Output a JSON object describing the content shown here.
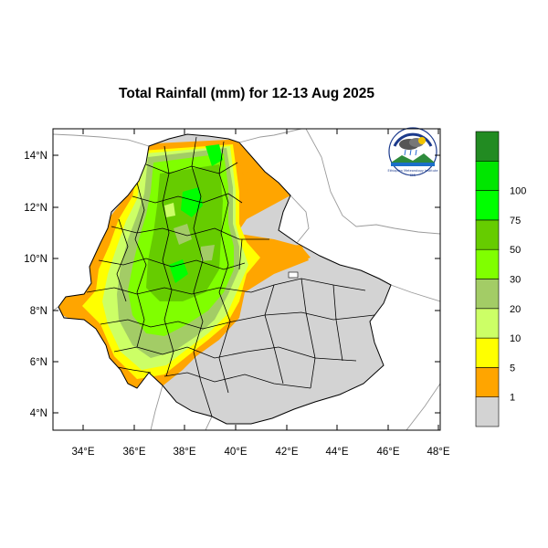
{
  "title": "Total Rainfall (mm) for 12-13 Aug 2025",
  "lat_ticks": [
    "14°N",
    "12°N",
    "10°N",
    "8°N",
    "6°N",
    "4°N"
  ],
  "lon_ticks": [
    "34°E",
    "36°E",
    "38°E",
    "40°E",
    "42°E",
    "44°E",
    "46°E",
    "48°E"
  ],
  "legend": {
    "levels": [
      "1",
      "5",
      "10",
      "20",
      "30",
      "50",
      "75",
      "100"
    ],
    "colors": [
      "#d3d3d3",
      "#ffa500",
      "#ffff00",
      "#ccff66",
      "#a3cc66",
      "#80ff00",
      "#66cc00",
      "#00ff00",
      "#00e600",
      "#228b22"
    ]
  },
  "logo": {
    "name": "ethiopian-meteorology-institute-logo",
    "text_top": "የኢትዮጵያ ሜትሮሎጂ ኢንስቲትዩት",
    "text_bottom": "Ethiopian Meteorology Institute",
    "text_short": "EMI"
  }
}
